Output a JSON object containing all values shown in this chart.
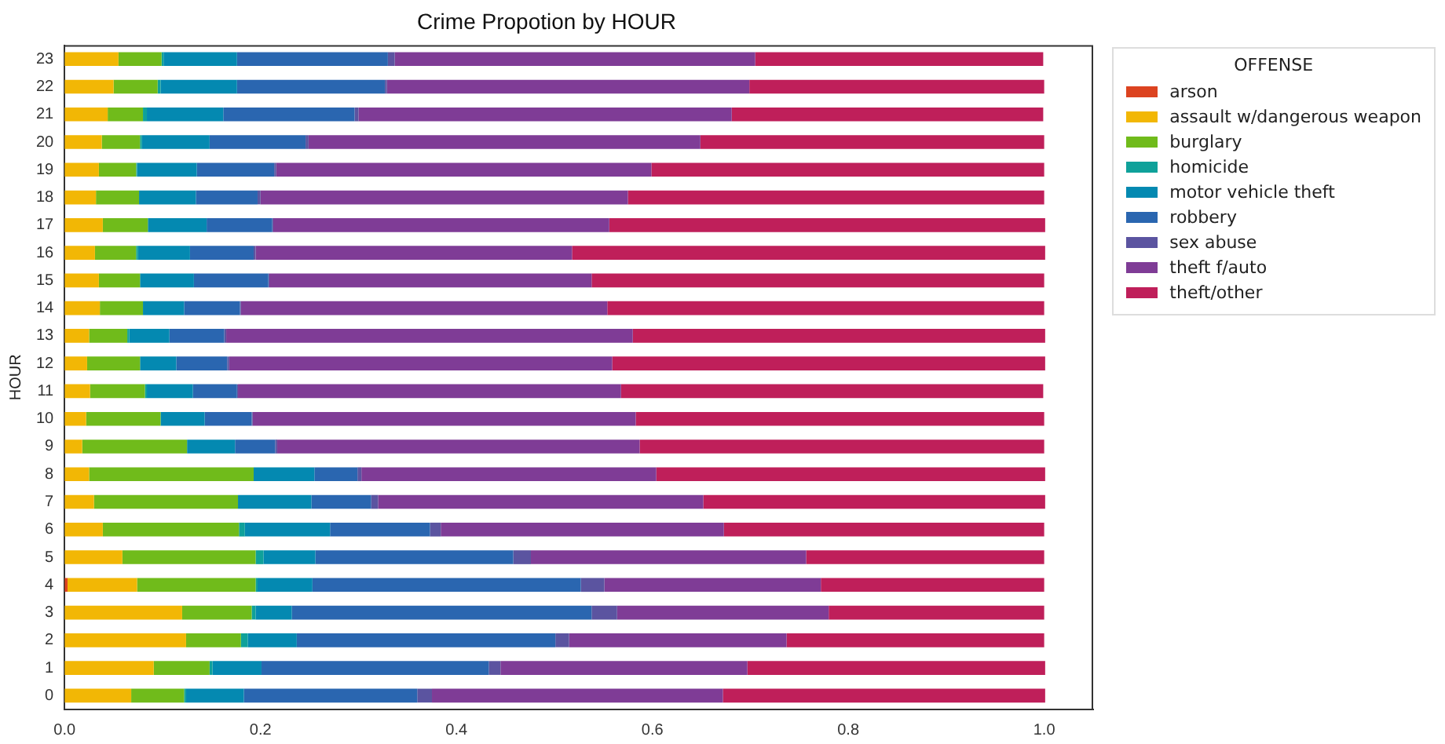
{
  "chart_data": {
    "type": "bar",
    "title": "Crime Propotion by HOUR",
    "ylabel": "HOUR",
    "orientation": "horizontal",
    "stacked": true,
    "grid": false,
    "legend": "top right",
    "legend_title": "OFFENSE",
    "categories": [
      "23",
      "22",
      "21",
      "20",
      "19",
      "18",
      "17",
      "16",
      "15",
      "14",
      "13",
      "12",
      "11",
      "10",
      "9",
      "8",
      "7",
      "6",
      "5",
      "4",
      "3",
      "2",
      "1",
      "0"
    ],
    "xlim": [
      0,
      1.05
    ],
    "xticks": [
      {
        "value": 0,
        "label": "0.0"
      },
      {
        "value": 0.2,
        "label": "0.2"
      },
      {
        "value": 0.4,
        "label": "0.4"
      },
      {
        "value": 0.6,
        "label": "0.6"
      },
      {
        "value": 0.8,
        "label": "0.8"
      },
      {
        "value": 1,
        "label": "1.0"
      }
    ],
    "series": [
      {
        "name": "arson",
        "color": "#dc4320",
        "values": [
          0,
          0,
          0,
          0,
          0,
          0,
          0,
          0,
          0,
          0,
          0,
          0,
          0,
          0,
          0,
          0,
          0,
          0,
          0,
          0.003,
          0,
          0,
          0,
          0
        ]
      },
      {
        "name": "assault w/dangerous weapon",
        "color": "#f2b705",
        "values": [
          0.055,
          0.05,
          0.044,
          0.038,
          0.035,
          0.032,
          0.039,
          0.031,
          0.035,
          0.036,
          0.025,
          0.023,
          0.026,
          0.022,
          0.018,
          0.025,
          0.03,
          0.039,
          0.059,
          0.071,
          0.12,
          0.124,
          0.091,
          0.068
        ]
      },
      {
        "name": "burglary",
        "color": "#70bb1b",
        "values": [
          0.044,
          0.045,
          0.036,
          0.039,
          0.038,
          0.044,
          0.046,
          0.042,
          0.042,
          0.044,
          0.039,
          0.054,
          0.056,
          0.076,
          0.107,
          0.168,
          0.147,
          0.139,
          0.136,
          0.121,
          0.071,
          0.056,
          0.057,
          0.054
        ]
      },
      {
        "name": "homicide",
        "color": "#0fa19a",
        "values": [
          0.002,
          0.003,
          0.004,
          0.002,
          0.001,
          0,
          0,
          0.002,
          0,
          0,
          0.002,
          0,
          0.002,
          0,
          0,
          0,
          0,
          0.006,
          0.008,
          0.002,
          0.004,
          0.007,
          0.003,
          0.002
        ]
      },
      {
        "name": "motor vehicle theft",
        "color": "#0489b1",
        "values": [
          0.075,
          0.078,
          0.078,
          0.069,
          0.061,
          0.058,
          0.06,
          0.053,
          0.055,
          0.042,
          0.041,
          0.037,
          0.047,
          0.045,
          0.049,
          0.062,
          0.075,
          0.087,
          0.053,
          0.056,
          0.037,
          0.05,
          0.05,
          0.059
        ]
      },
      {
        "name": "robbery",
        "color": "#2a66b0",
        "values": [
          0.154,
          0.151,
          0.134,
          0.098,
          0.079,
          0.063,
          0.067,
          0.065,
          0.076,
          0.057,
          0.056,
          0.052,
          0.045,
          0.048,
          0.041,
          0.044,
          0.061,
          0.102,
          0.202,
          0.274,
          0.306,
          0.264,
          0.232,
          0.177
        ]
      },
      {
        "name": "sex abuse",
        "color": "#5b54a0",
        "values": [
          0.007,
          0.002,
          0.004,
          0.003,
          0.002,
          0.003,
          0.001,
          0.002,
          0.001,
          0.001,
          0.002,
          0.002,
          0.001,
          0.001,
          0.002,
          0.004,
          0.007,
          0.011,
          0.018,
          0.024,
          0.026,
          0.014,
          0.012,
          0.015
        ]
      },
      {
        "name": "theft f/auto",
        "color": "#7f3c96",
        "values": [
          0.368,
          0.37,
          0.381,
          0.4,
          0.383,
          0.375,
          0.343,
          0.323,
          0.329,
          0.374,
          0.415,
          0.391,
          0.391,
          0.391,
          0.37,
          0.301,
          0.332,
          0.289,
          0.281,
          0.221,
          0.216,
          0.222,
          0.252,
          0.297
        ]
      },
      {
        "name": "theft/other",
        "color": "#bf1f5a",
        "values": [
          0.294,
          0.301,
          0.318,
          0.351,
          0.401,
          0.425,
          0.445,
          0.483,
          0.462,
          0.446,
          0.421,
          0.442,
          0.431,
          0.417,
          0.413,
          0.397,
          0.349,
          0.327,
          0.243,
          0.228,
          0.22,
          0.263,
          0.304,
          0.329
        ]
      }
    ]
  }
}
